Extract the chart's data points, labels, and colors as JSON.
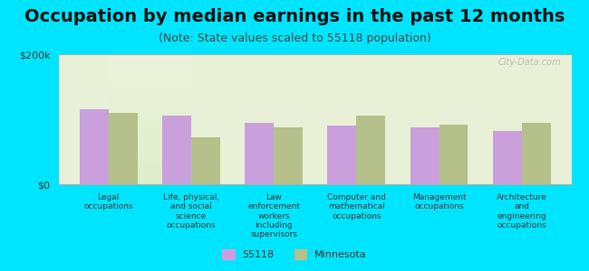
{
  "title": "Occupation by median earnings in the past 12 months",
  "subtitle": "(Note: State values scaled to 55118 population)",
  "categories": [
    "Legal\noccupations",
    "Life, physical,\nand social\nscience\noccupations",
    "Law\nenforcement\nworkers\nincluding\nsupervisors",
    "Computer and\nmathematical\noccupations",
    "Management\noccupations",
    "Architecture\nand\nengineering\noccupations"
  ],
  "values_55118": [
    115000,
    105000,
    95000,
    90000,
    88000,
    82000
  ],
  "values_minnesota": [
    110000,
    72000,
    88000,
    105000,
    92000,
    95000
  ],
  "color_55118": "#c9a0dc",
  "color_minnesota": "#b5c08a",
  "ylim": [
    0,
    200000
  ],
  "yticks": [
    0,
    200000
  ],
  "ytick_labels": [
    "$0",
    "$200k"
  ],
  "background_top": "#e8f0d8",
  "background_bottom": "#f5f5e8",
  "outer_background": "#00e5ff",
  "legend_label_55118": "55118",
  "legend_label_minnesota": "Minnesota",
  "watermark": "City-Data.com",
  "title_fontsize": 14,
  "subtitle_fontsize": 9,
  "bar_width": 0.35
}
